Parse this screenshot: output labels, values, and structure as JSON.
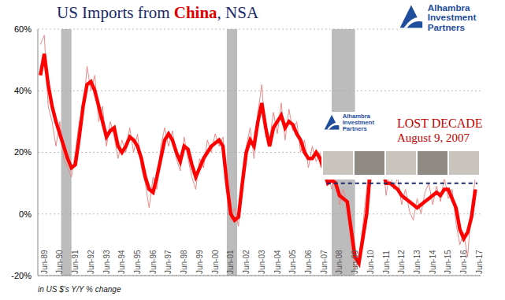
{
  "chart_data": {
    "type": "line",
    "title": "US Imports from China, NSA",
    "title_highlight": "China",
    "logo": "Alhambra Investment Partners",
    "footnote": "in US $'s Y/Y % change",
    "annotation": {
      "logo": "Alhambra Investment Partners",
      "title": "LOST DECADE",
      "date": "August 9, 2007"
    },
    "x": [
      1989.167,
      1989.417,
      1989.667,
      1989.917,
      1990.167,
      1990.417,
      1990.667,
      1990.917,
      1991.167,
      1991.417,
      1991.667,
      1991.917,
      1992.167,
      1992.417,
      1992.667,
      1992.917,
      1993.167,
      1993.417,
      1993.667,
      1993.917,
      1994.167,
      1994.417,
      1994.667,
      1994.917,
      1995.167,
      1995.417,
      1995.667,
      1995.917,
      1996.167,
      1996.417,
      1996.667,
      1996.917,
      1997.167,
      1997.417,
      1997.667,
      1997.917,
      1998.167,
      1998.417,
      1998.667,
      1998.917,
      1999.167,
      1999.417,
      1999.667,
      1999.917,
      2000.167,
      2000.417,
      2000.667,
      2000.917,
      2001.167,
      2001.417,
      2001.667,
      2001.917,
      2002.167,
      2002.417,
      2002.667,
      2002.917,
      2003.167,
      2003.417,
      2003.667,
      2003.917,
      2004.167,
      2004.417,
      2004.667,
      2004.917,
      2005.167,
      2005.417,
      2005.667,
      2005.917,
      2006.167,
      2006.417,
      2006.667,
      2006.917,
      2007.167,
      2007.417,
      2007.667,
      2007.917,
      2008.167,
      2008.417,
      2008.667,
      2008.917,
      2009.167,
      2009.417,
      2009.667,
      2009.917,
      2010.167,
      2010.417,
      2010.667,
      2010.917,
      2011.167,
      2011.417,
      2011.667,
      2011.917,
      2012.167,
      2012.417,
      2012.667,
      2012.917,
      2013.167,
      2013.417,
      2013.667,
      2013.917,
      2014.167,
      2014.417,
      2014.667,
      2014.917,
      2015.167,
      2015.417,
      2015.667,
      2015.917,
      2016.167,
      2016.417,
      2016.667,
      2016.917,
      2017.167
    ],
    "series": [
      {
        "color": "#e88a8a",
        "values": [
          55,
          58,
          35,
          30,
          22,
          30,
          18,
          15,
          12,
          20,
          30,
          32,
          48,
          40,
          45,
          30,
          35,
          22,
          30,
          25,
          18,
          24,
          20,
          28,
          20,
          26,
          15,
          10,
          2,
          12,
          8,
          22,
          28,
          22,
          27,
          18,
          14,
          25,
          18,
          12,
          8,
          18,
          15,
          24,
          20,
          26,
          22,
          25,
          12,
          -2,
          2,
          -4,
          14,
          22,
          28,
          18,
          33,
          42,
          25,
          24,
          33,
          26,
          36,
          24,
          34,
          27,
          30,
          20,
          24,
          15,
          22,
          17,
          20,
          12,
          14,
          8,
          14,
          3,
          8,
          2,
          -10,
          -18,
          -14,
          -4,
          8,
          20,
          28,
          16,
          20,
          6,
          14,
          8,
          12,
          3,
          8,
          1,
          -2,
          5,
          0,
          7,
          10,
          3,
          9,
          4,
          12,
          5,
          8,
          -3,
          -10,
          -6,
          -14,
          2,
          12
        ]
      },
      {
        "color": "#ff0000",
        "values": [
          45,
          52,
          42,
          35,
          30,
          26,
          22,
          18,
          15,
          16,
          25,
          35,
          42,
          43,
          40,
          35,
          30,
          25,
          27,
          28,
          22,
          20,
          22,
          25,
          24,
          22,
          18,
          12,
          8,
          7,
          12,
          18,
          24,
          26,
          24,
          20,
          17,
          22,
          21,
          16,
          12,
          15,
          18,
          20,
          22,
          23,
          24,
          22,
          10,
          0,
          -2,
          -1,
          10,
          20,
          24,
          22,
          30,
          36,
          28,
          22,
          28,
          30,
          32,
          28,
          30,
          29,
          26,
          24,
          20,
          18,
          18,
          20,
          18,
          14,
          10,
          11,
          10,
          6,
          5,
          4,
          -5,
          -14,
          -16,
          -8,
          0,
          15,
          22,
          20,
          15,
          10,
          10,
          9,
          8,
          6,
          5,
          4,
          3,
          2,
          3,
          4,
          5,
          6,
          7,
          6,
          8,
          8,
          5,
          2,
          -5,
          -8,
          -6,
          -1,
          8
        ]
      }
    ],
    "recessions": [
      {
        "start": 1990.5,
        "end": 1991.167
      },
      {
        "start": 2001.167,
        "end": 2001.833
      },
      {
        "start": 2007.917,
        "end": 2009.417
      }
    ],
    "reference_line": {
      "y": 10,
      "x": [
        2007.6,
        2017.3
      ]
    },
    "xlim": [
      1989,
      2017.5
    ],
    "xticks": [
      {
        "value": 1989.417,
        "label": "Jun-89"
      },
      {
        "value": 1990.417,
        "label": "Jun-90"
      },
      {
        "value": 1991.417,
        "label": "Jun-91"
      },
      {
        "value": 1992.417,
        "label": "Jun-92"
      },
      {
        "value": 1993.417,
        "label": "Jun-93"
      },
      {
        "value": 1994.417,
        "label": "Jun-94"
      },
      {
        "value": 1995.417,
        "label": "Jun-95"
      },
      {
        "value": 1996.417,
        "label": "Jun-96"
      },
      {
        "value": 1997.417,
        "label": "Jun-97"
      },
      {
        "value": 1998.417,
        "label": "Jun-98"
      },
      {
        "value": 1999.417,
        "label": "Jun-99"
      },
      {
        "value": 2000.417,
        "label": "Jun-00"
      },
      {
        "value": 2001.417,
        "label": "Jun-01"
      },
      {
        "value": 2002.417,
        "label": "Jun-02"
      },
      {
        "value": 2003.417,
        "label": "Jun-03"
      },
      {
        "value": 2004.417,
        "label": "Jun-04"
      },
      {
        "value": 2005.417,
        "label": "Jun-05"
      },
      {
        "value": 2006.417,
        "label": "Jun-06"
      },
      {
        "value": 2007.417,
        "label": "Jun-07"
      },
      {
        "value": 2008.417,
        "label": "Jun-08"
      },
      {
        "value": 2009.417,
        "label": "Jun-09"
      },
      {
        "value": 2010.417,
        "label": "Jun-10"
      },
      {
        "value": 2011.417,
        "label": "Jun-11"
      },
      {
        "value": 2012.417,
        "label": "Jun-12"
      },
      {
        "value": 2013.417,
        "label": "Jun-13"
      },
      {
        "value": 2014.417,
        "label": "Jun-14"
      },
      {
        "value": 2015.417,
        "label": "Jun-15"
      },
      {
        "value": 2016.417,
        "label": "Jun-16"
      },
      {
        "value": 2017.417,
        "label": "Jun-17"
      }
    ],
    "ylim": [
      -20,
      60
    ],
    "yticks": [
      {
        "value": -20,
        "label": "-20%"
      },
      {
        "value": 0,
        "label": "0%"
      },
      {
        "value": 20,
        "label": "20%"
      },
      {
        "value": 40,
        "label": "40%"
      },
      {
        "value": 60,
        "label": "60%"
      }
    ],
    "grid": true
  }
}
